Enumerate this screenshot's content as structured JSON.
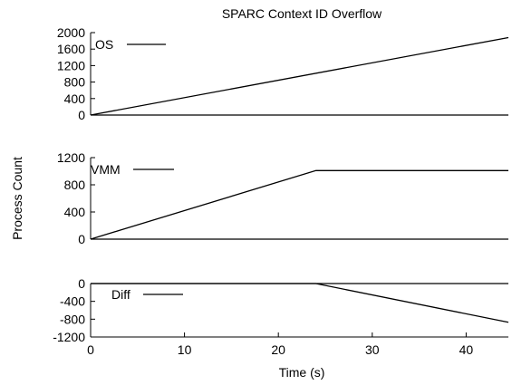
{
  "chart_data": {
    "type": "line",
    "title": "SPARC Context ID Overflow",
    "xlabel": "Time (s)",
    "ylabel": "Process Count",
    "xlim": [
      0,
      44.5
    ],
    "xticks": [
      "0",
      "10",
      "20",
      "30",
      "40"
    ],
    "grid": false,
    "legend_placement": "top-left",
    "panels": [
      {
        "series": [
          {
            "name": "OS",
            "x": [
              0,
              44.5
            ],
            "y": [
              0,
              1880
            ]
          }
        ],
        "ylim": [
          0,
          2000
        ],
        "yticks": [
          "0",
          "400",
          "800",
          "1200",
          "1600",
          "2000"
        ]
      },
      {
        "series": [
          {
            "name": "VMM",
            "x": [
              0,
              24,
              44.5
            ],
            "y": [
              0,
              1010,
              1010
            ]
          }
        ],
        "ylim": [
          0,
          1200
        ],
        "yticks": [
          "0",
          "400",
          "800",
          "1200"
        ]
      },
      {
        "series": [
          {
            "name": "Diff",
            "x": [
              0,
              24,
              44.5
            ],
            "y": [
              0,
              0,
              -870
            ]
          }
        ],
        "ylim": [
          -1200,
          0
        ],
        "yticks": [
          "-1200",
          "-800",
          "-400",
          "0"
        ]
      }
    ]
  },
  "colors": {
    "line": "#000000",
    "axis": "#000000"
  }
}
